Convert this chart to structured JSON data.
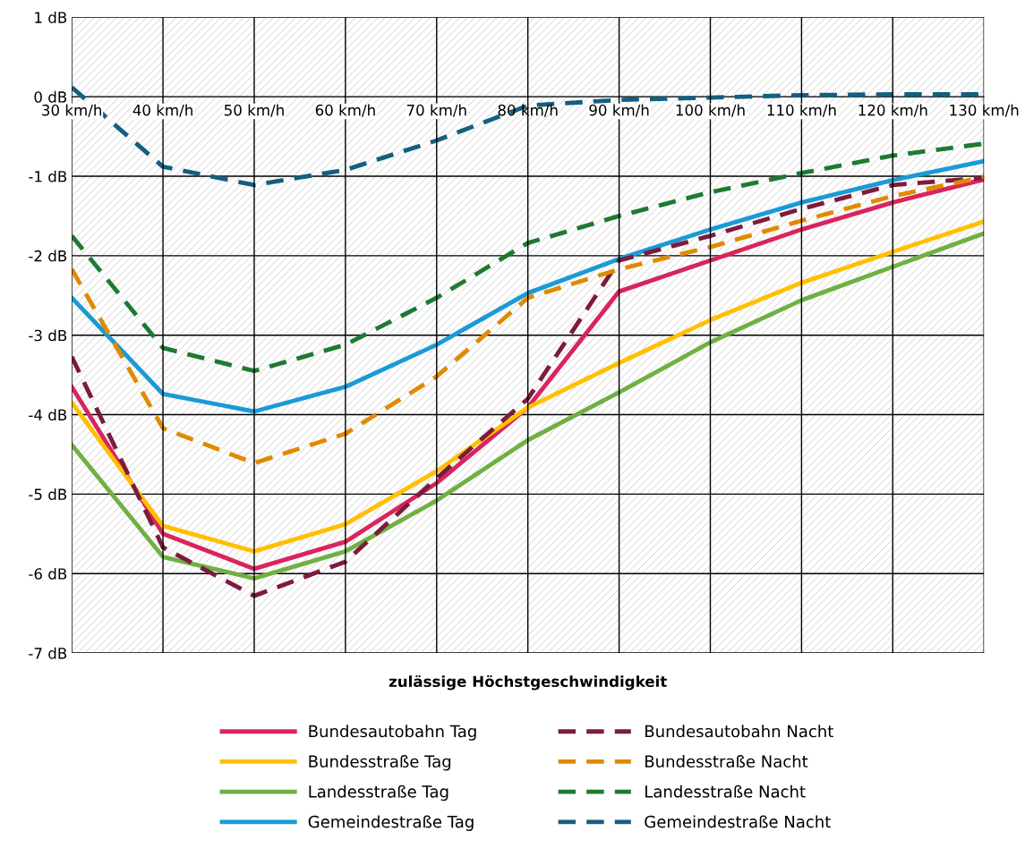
{
  "chart_data": {
    "type": "line",
    "xlabel": "zulässige Höchstgeschwindigkeit",
    "categories": [
      "30 km/h",
      "40 km/h",
      "50 km/h",
      "60 km/h",
      "70 km/h",
      "80 km/h",
      "90 km/h",
      "100 km/h",
      "110 km/h",
      "120 km/h",
      "130 km/h"
    ],
    "ylim": [
      -7,
      1
    ],
    "yticks": [
      {
        "value": 1,
        "label": "1 dB"
      },
      {
        "value": 0,
        "label": "0 dB"
      },
      {
        "value": -1,
        "label": "-1 dB"
      },
      {
        "value": -2,
        "label": "-2 dB"
      },
      {
        "value": -3,
        "label": "-3 dB"
      },
      {
        "value": -4,
        "label": "-4 dB"
      },
      {
        "value": -5,
        "label": "-5 dB"
      },
      {
        "value": -6,
        "label": "-6 dB"
      },
      {
        "value": -7,
        "label": "-7 dB"
      }
    ],
    "grid": true,
    "legend": "bottom",
    "marker": "none",
    "series": [
      {
        "name": "Bundesautobahn Tag",
        "color": "#d9245c",
        "line_style": "solid",
        "values": [
          -3.65,
          -5.5,
          -5.94,
          -5.6,
          -4.86,
          -3.91,
          -2.45,
          -2.06,
          -1.67,
          -1.33,
          -1.04
        ]
      },
      {
        "name": "Bundesstraße Tag",
        "color": "#ffc000",
        "line_style": "solid",
        "values": [
          -3.85,
          -5.4,
          -5.72,
          -5.38,
          -4.71,
          -3.91,
          -3.35,
          -2.81,
          -2.34,
          -1.95,
          -1.57
        ]
      },
      {
        "name": "Landesstraße Tag",
        "color": "#70b043",
        "line_style": "solid",
        "values": [
          -4.38,
          -5.79,
          -6.06,
          -5.72,
          -5.08,
          -4.32,
          -3.72,
          -3.09,
          -2.56,
          -2.14,
          -1.72
        ]
      },
      {
        "name": "Gemeindestraße Tag",
        "color": "#1a9ad6",
        "line_style": "solid",
        "values": [
          -2.53,
          -3.74,
          -3.96,
          -3.65,
          -3.12,
          -2.47,
          -2.04,
          -1.67,
          -1.33,
          -1.05,
          -0.81
        ]
      },
      {
        "name": "Bundesautobahn Nacht",
        "color": "#7b1c3c",
        "line_style": "dashed",
        "values": [
          -3.27,
          -5.67,
          -6.28,
          -5.85,
          -4.8,
          -3.8,
          -2.06,
          -1.75,
          -1.41,
          -1.11,
          -1.02
        ]
      },
      {
        "name": "Bundesstraße Nacht",
        "color": "#e08a00",
        "line_style": "dashed",
        "values": [
          -2.17,
          -4.17,
          -4.61,
          -4.24,
          -3.52,
          -2.53,
          -2.17,
          -1.89,
          -1.56,
          -1.25,
          -1.01
        ]
      },
      {
        "name": "Landesstraße Nacht",
        "color": "#1e7a32",
        "line_style": "dashed",
        "values": [
          -1.75,
          -3.16,
          -3.45,
          -3.12,
          -2.53,
          -1.84,
          -1.5,
          -1.2,
          -0.96,
          -0.74,
          -0.59
        ]
      },
      {
        "name": "Gemeindestraße Nacht",
        "color": "#145f7f",
        "line_style": "dashed",
        "values": [
          0.12,
          -0.88,
          -1.11,
          -0.92,
          -0.55,
          -0.11,
          -0.04,
          -0.01,
          0.02,
          0.03,
          0.03
        ]
      }
    ]
  }
}
